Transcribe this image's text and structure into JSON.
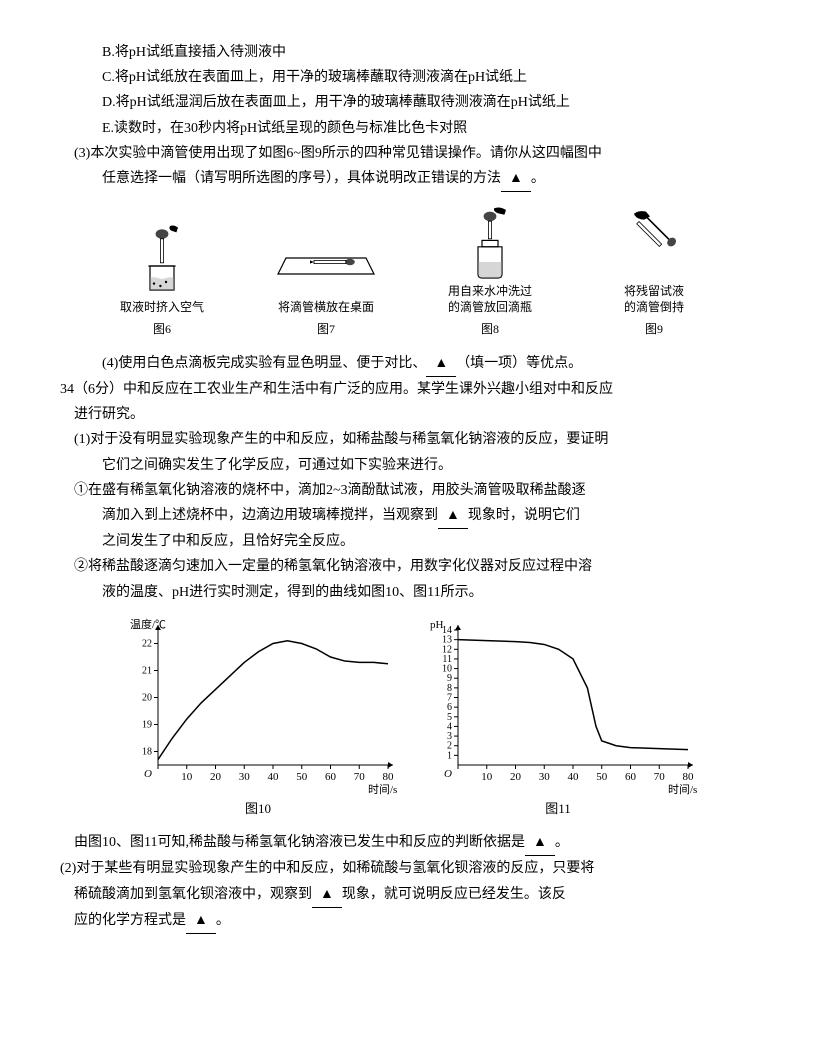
{
  "options": {
    "B": "B.将pH试纸直接插入待测液中",
    "C": "C.将pH试纸放在表面皿上，用干净的玻璃棒蘸取待测液滴在pH试纸上",
    "D": "D.将pH试纸湿润后放在表面皿上，用干净的玻璃棒蘸取待测液滴在pH试纸上",
    "E": "E.读数时，在30秒内将pH试纸呈现的颜色与标准比色卡对照"
  },
  "q3_line1": "(3)本次实验中滴管使用出现了如图6~图9所示的四种常见错误操作。请你从这四幅图中",
  "q3_line2": "任意选择一幅（请写明所选图的序号），具体说明改正错误的方法",
  "blank_placeholder": "▲",
  "period": "。",
  "fig6": {
    "caption": "取液时挤入空气",
    "label": "图6"
  },
  "fig7": {
    "caption": "将滴管横放在桌面",
    "label": "图7"
  },
  "fig8": {
    "caption": "用自来水冲洗过\n的滴管放回滴瓶",
    "label": "图8"
  },
  "fig9": {
    "caption": "将残留试液\n的滴管倒持",
    "label": "图9"
  },
  "q4": "(4)使用白色点滴板完成实验有显色明显、便于对比、",
  "q4_end": "（填一项）等优点。",
  "q34_start": "34（6分）中和反应在工农业生产和生活中有广泛的应用。某学生课外兴趣小组对中和反应",
  "q34_line2": "进行研究。",
  "sub1_line1": "(1)对于没有明显实验现象产生的中和反应，如稀盐酸与稀氢氧化钠溶液的反应，要证明",
  "sub1_line2": "它们之间确实发生了化学反应，可通过如下实验来进行。",
  "circle1_line1": "①在盛有稀氢氧化钠溶液的烧杯中，滴加2~3滴酚酞试液，用胶头滴管吸取稀盐酸逐",
  "circle1_line2": "滴加入到上述烧杯中，边滴边用玻璃棒搅拌，当观察到",
  "circle1_line2_end": "现象时，说明它们",
  "circle1_line3": "之间发生了中和反应，且恰好完全反应。",
  "circle2_line1": "②将稀盐酸逐滴匀速加入一定量的稀氢氧化钠溶液中，用数字化仪器对反应过程中溶",
  "circle2_line2": "液的温度、pH进行实时测定，得到的曲线如图10、图11所示。",
  "chart10": {
    "type": "line",
    "ylabel": "温度/℃",
    "xlabel": "时间/s",
    "label": "图10",
    "xlim": [
      0,
      80
    ],
    "ylim": [
      17.5,
      22.5
    ],
    "xticks": [
      0,
      10,
      20,
      30,
      40,
      50,
      60,
      70,
      80
    ],
    "yticks": [
      18,
      19,
      20,
      21,
      22
    ],
    "points": [
      [
        0,
        17.7
      ],
      [
        5,
        18.5
      ],
      [
        10,
        19.2
      ],
      [
        15,
        19.8
      ],
      [
        20,
        20.3
      ],
      [
        25,
        20.8
      ],
      [
        30,
        21.3
      ],
      [
        35,
        21.7
      ],
      [
        40,
        22.0
      ],
      [
        45,
        22.1
      ],
      [
        50,
        22.0
      ],
      [
        55,
        21.8
      ],
      [
        60,
        21.5
      ],
      [
        65,
        21.35
      ],
      [
        70,
        21.3
      ],
      [
        75,
        21.3
      ],
      [
        80,
        21.25
      ]
    ],
    "line_color": "#000000",
    "line_width": 1.5,
    "background_color": "#ffffff"
  },
  "chart11": {
    "type": "line",
    "ylabel": "pH",
    "xlabel": "时间/s",
    "label": "图11",
    "xlim": [
      0,
      80
    ],
    "ylim": [
      0,
      14
    ],
    "xticks": [
      0,
      10,
      20,
      30,
      40,
      50,
      60,
      70,
      80
    ],
    "yticks": [
      1,
      2,
      3,
      4,
      5,
      6,
      7,
      8,
      9,
      10,
      11,
      12,
      13,
      14
    ],
    "points": [
      [
        0,
        13.0
      ],
      [
        10,
        12.9
      ],
      [
        20,
        12.8
      ],
      [
        25,
        12.7
      ],
      [
        30,
        12.5
      ],
      [
        35,
        12.0
      ],
      [
        40,
        11.0
      ],
      [
        45,
        8.0
      ],
      [
        48,
        4.0
      ],
      [
        50,
        2.5
      ],
      [
        55,
        2.0
      ],
      [
        60,
        1.8
      ],
      [
        70,
        1.7
      ],
      [
        80,
        1.6
      ]
    ],
    "line_color": "#000000",
    "line_width": 1.5,
    "background_color": "#ffffff"
  },
  "after_charts": "由图10、图11可知,稀盐酸与稀氢氧化钠溶液已发生中和反应的判断依据是",
  "sub2_line1": "(2)对于某些有明显实验现象产生的中和反应，如稀硫酸与氢氧化钡溶液的反应，只要将",
  "sub2_line2": "稀硫酸滴加到氢氧化钡溶液中，观察到",
  "sub2_line2_end": "现象，就可说明反应已经发生。该反",
  "sub2_line3": "应的化学方程式是"
}
